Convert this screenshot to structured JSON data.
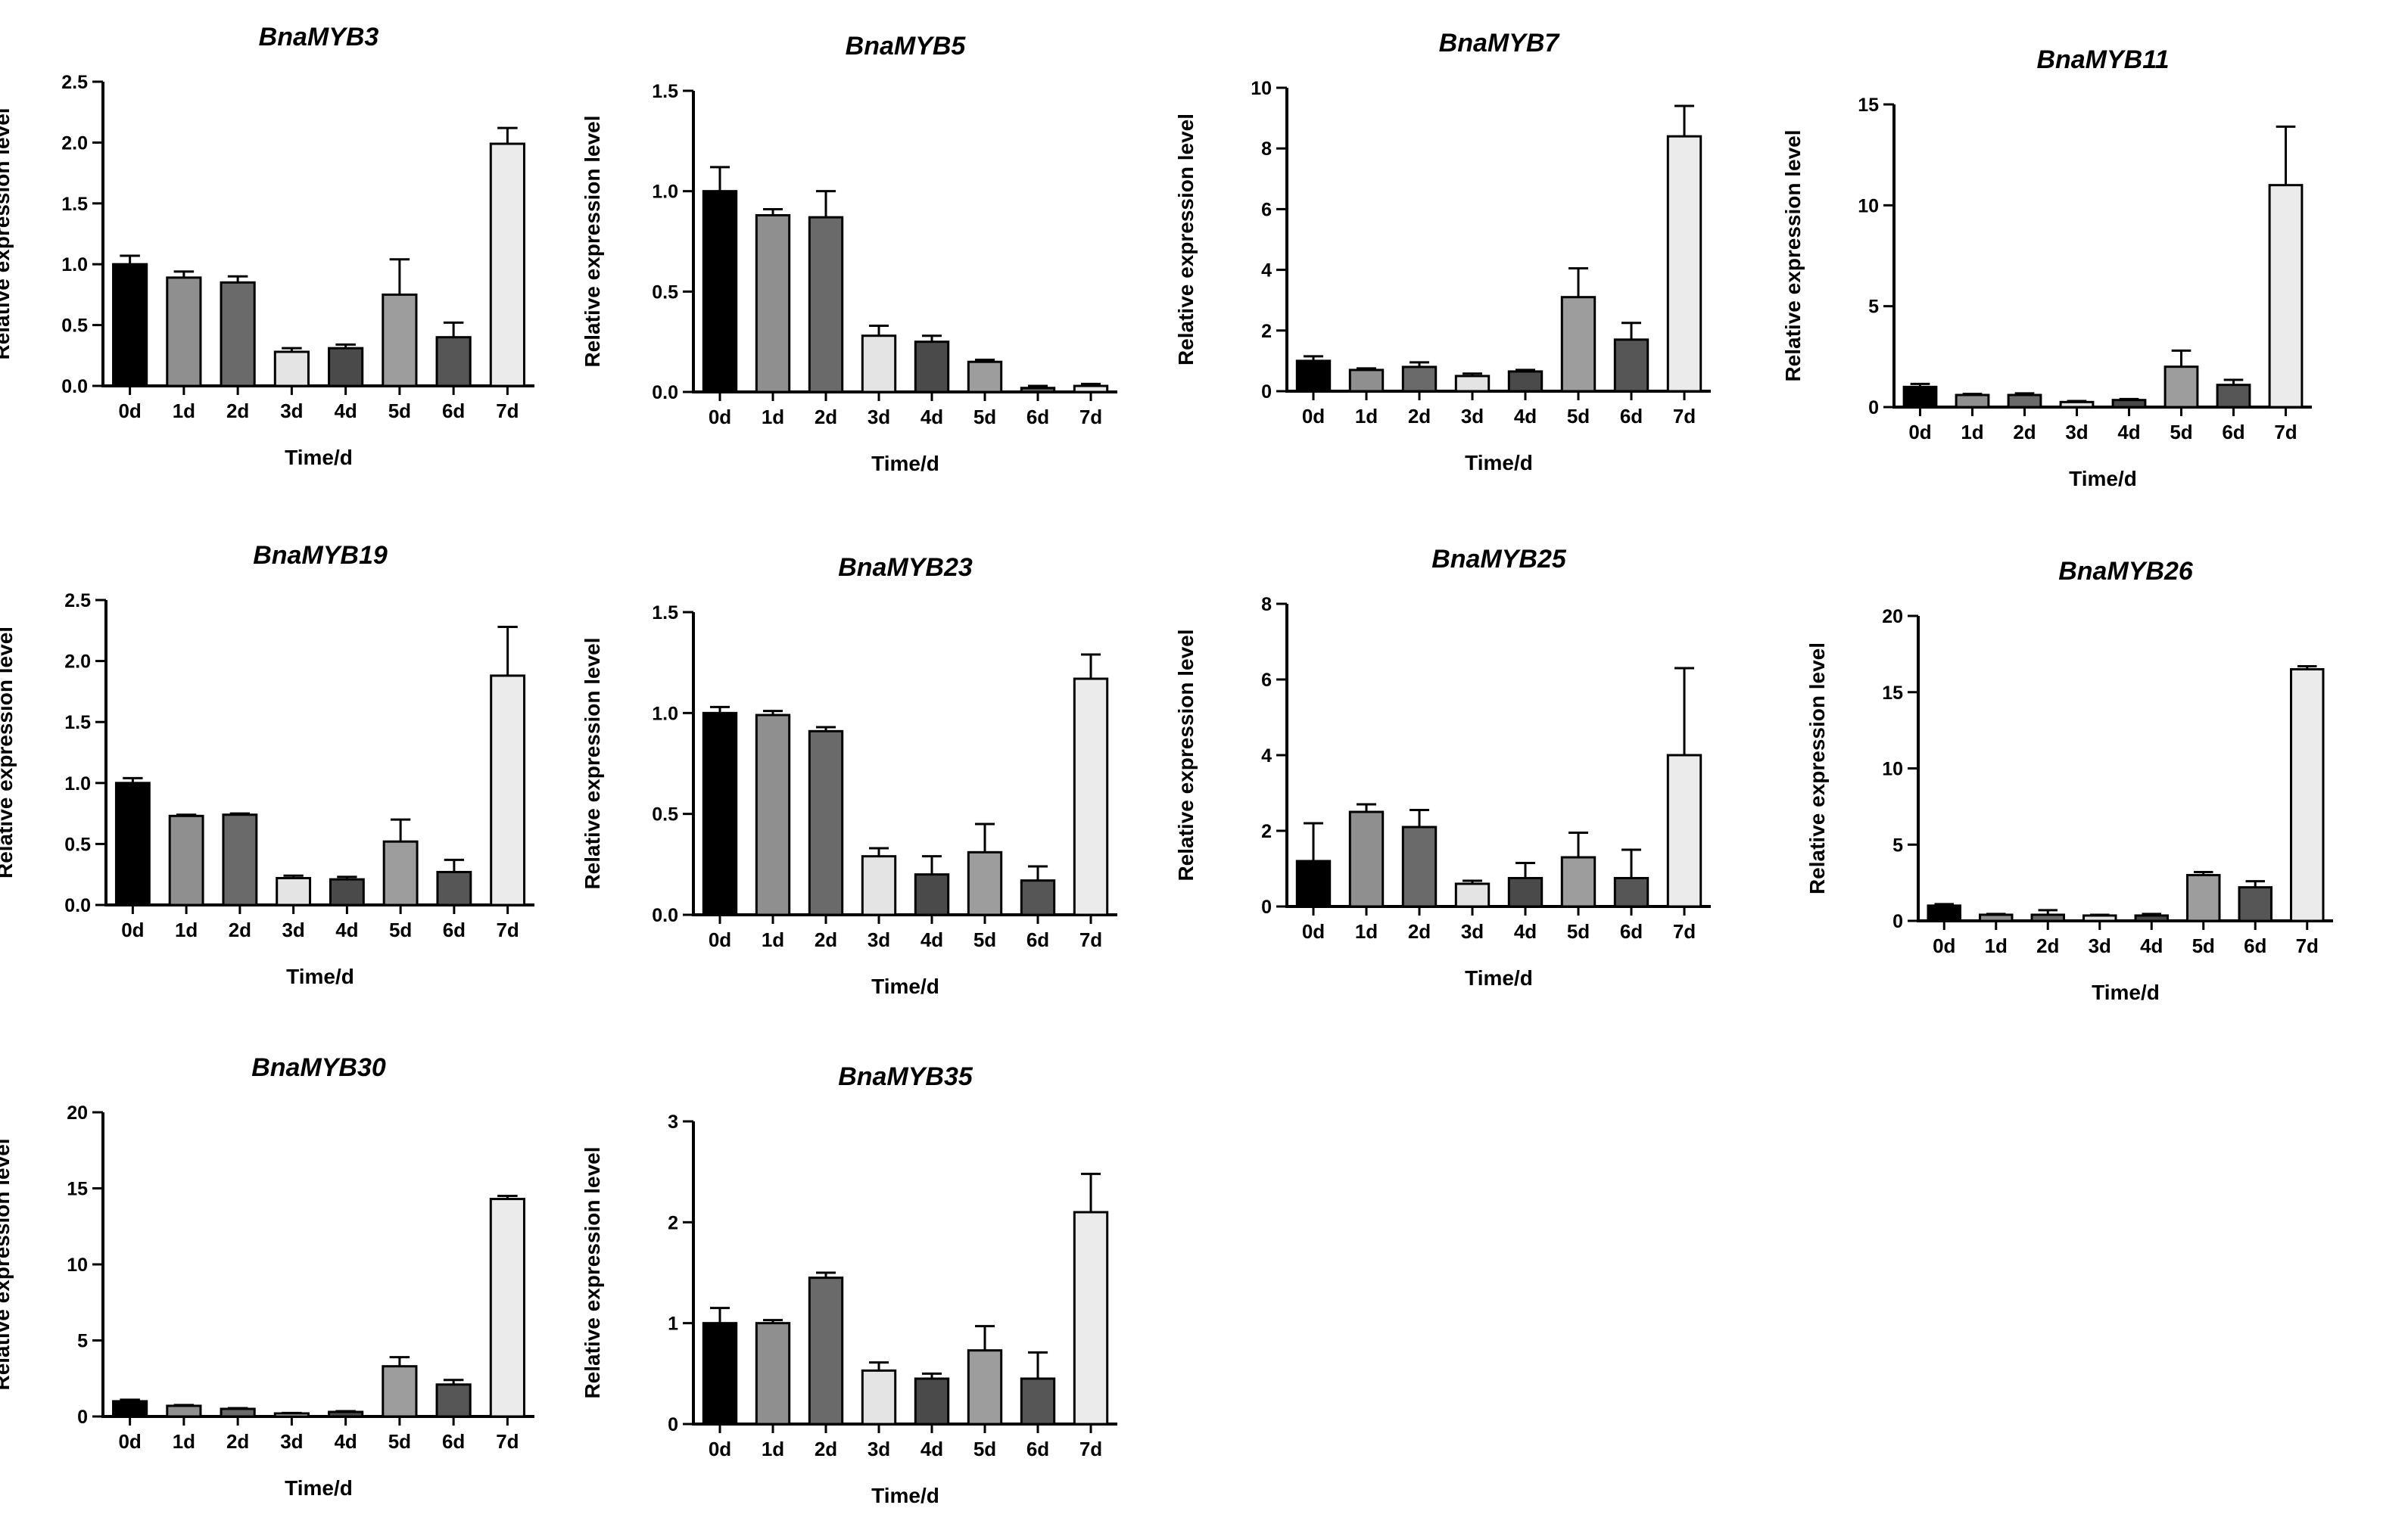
{
  "chart_data": [
    {
      "type": "bar",
      "title": "BnaMYB3",
      "xlabel": "Time/d",
      "ylabel": "Relative expression level",
      "categories": [
        "0d",
        "1d",
        "2d",
        "3d",
        "4d",
        "5d",
        "6d",
        "7d"
      ],
      "values": [
        1.0,
        0.89,
        0.85,
        0.28,
        0.31,
        0.75,
        0.4,
        1.99
      ],
      "errors": [
        0.07,
        0.05,
        0.05,
        0.03,
        0.03,
        0.29,
        0.12,
        0.13
      ],
      "ylim": [
        0,
        2.5
      ],
      "yticks": [
        "0.0",
        "0.5",
        "1.0",
        "1.5",
        "2.0",
        "2.5"
      ]
    },
    {
      "type": "bar",
      "title": "BnaMYB5",
      "xlabel": "Time/d",
      "ylabel": "Relative expression level",
      "categories": [
        "0d",
        "1d",
        "2d",
        "3d",
        "4d",
        "5d",
        "6d",
        "7d"
      ],
      "values": [
        1.0,
        0.88,
        0.87,
        0.28,
        0.25,
        0.15,
        0.02,
        0.03
      ],
      "errors": [
        0.12,
        0.03,
        0.13,
        0.05,
        0.03,
        0.01,
        0.01,
        0.01
      ],
      "ylim": [
        0,
        1.5
      ],
      "yticks": [
        "0.0",
        "0.5",
        "1.0",
        "1.5"
      ]
    },
    {
      "type": "bar",
      "title": "BnaMYB7",
      "xlabel": "Time/d",
      "ylabel": "Relative expression level",
      "categories": [
        "0d",
        "1d",
        "2d",
        "3d",
        "4d",
        "5d",
        "6d",
        "7d"
      ],
      "values": [
        1.0,
        0.7,
        0.8,
        0.5,
        0.65,
        3.1,
        1.7,
        8.4
      ],
      "errors": [
        0.15,
        0.05,
        0.15,
        0.08,
        0.05,
        0.95,
        0.55,
        1.0
      ],
      "ylim": [
        0,
        10
      ],
      "yticks": [
        "0",
        "2",
        "4",
        "6",
        "8",
        "10"
      ]
    },
    {
      "type": "bar",
      "title": "BnaMYB11",
      "xlabel": "Time/d",
      "ylabel": "Relative expression level",
      "categories": [
        "0d",
        "1d",
        "2d",
        "3d",
        "4d",
        "5d",
        "6d",
        "7d"
      ],
      "values": [
        1.0,
        0.6,
        0.6,
        0.25,
        0.35,
        2.0,
        1.1,
        11.0
      ],
      "errors": [
        0.15,
        0.05,
        0.08,
        0.05,
        0.05,
        0.8,
        0.25,
        2.9
      ],
      "ylim": [
        0,
        15
      ],
      "yticks": [
        "0",
        "5",
        "10",
        "15"
      ]
    },
    {
      "type": "bar",
      "title": "BnaMYB19",
      "xlabel": "Time/d",
      "ylabel": "Relative expression level",
      "categories": [
        "0d",
        "1d",
        "2d",
        "3d",
        "4d",
        "5d",
        "6d",
        "7d"
      ],
      "values": [
        1.0,
        0.73,
        0.74,
        0.22,
        0.21,
        0.52,
        0.27,
        1.88
      ],
      "errors": [
        0.04,
        0.01,
        0.01,
        0.02,
        0.02,
        0.18,
        0.1,
        0.4
      ],
      "ylim": [
        0,
        2.5
      ],
      "yticks": [
        "0.0",
        "0.5",
        "1.0",
        "1.5",
        "2.0",
        "2.5"
      ]
    },
    {
      "type": "bar",
      "title": "BnaMYB23",
      "xlabel": "Time/d",
      "ylabel": "Relative expression level",
      "categories": [
        "0d",
        "1d",
        "2d",
        "3d",
        "4d",
        "5d",
        "6d",
        "7d"
      ],
      "values": [
        1.0,
        0.99,
        0.91,
        0.29,
        0.2,
        0.31,
        0.17,
        1.17
      ],
      "errors": [
        0.03,
        0.02,
        0.02,
        0.04,
        0.09,
        0.14,
        0.07,
        0.12
      ],
      "ylim": [
        0,
        1.5
      ],
      "yticks": [
        "0.0",
        "0.5",
        "1.0",
        "1.5"
      ]
    },
    {
      "type": "bar",
      "title": "BnaMYB25",
      "xlabel": "Time/d",
      "ylabel": "Relative expression level",
      "categories": [
        "0d",
        "1d",
        "2d",
        "3d",
        "4d",
        "5d",
        "6d",
        "7d"
      ],
      "values": [
        1.2,
        2.5,
        2.1,
        0.6,
        0.75,
        1.3,
        0.75,
        4.0
      ],
      "errors": [
        1.0,
        0.2,
        0.45,
        0.08,
        0.4,
        0.65,
        0.75,
        2.3
      ],
      "ylim": [
        0,
        8
      ],
      "yticks": [
        "0",
        "2",
        "4",
        "6",
        "8"
      ]
    },
    {
      "type": "bar",
      "title": "BnaMYB26",
      "xlabel": "Time/d",
      "ylabel": "Relative expression level",
      "categories": [
        "0d",
        "1d",
        "2d",
        "3d",
        "4d",
        "5d",
        "6d",
        "7d"
      ],
      "values": [
        1.0,
        0.4,
        0.4,
        0.35,
        0.35,
        3.0,
        2.2,
        16.5
      ],
      "errors": [
        0.1,
        0.05,
        0.3,
        0.05,
        0.1,
        0.2,
        0.4,
        0.2
      ],
      "ylim": [
        0,
        20
      ],
      "yticks": [
        "0",
        "5",
        "10",
        "15",
        "20"
      ]
    },
    {
      "type": "bar",
      "title": "BnaMYB30",
      "xlabel": "Time/d",
      "ylabel": "Relative expression level",
      "categories": [
        "0d",
        "1d",
        "2d",
        "3d",
        "4d",
        "5d",
        "6d",
        "7d"
      ],
      "values": [
        1.0,
        0.7,
        0.5,
        0.2,
        0.3,
        3.3,
        2.1,
        14.3
      ],
      "errors": [
        0.1,
        0.05,
        0.05,
        0.03,
        0.05,
        0.6,
        0.3,
        0.2
      ],
      "ylim": [
        0,
        20
      ],
      "yticks": [
        "0",
        "5",
        "10",
        "15",
        "20"
      ]
    },
    {
      "type": "bar",
      "title": "BnaMYB35",
      "xlabel": "Time/d",
      "ylabel": "Relative expression level",
      "categories": [
        "0d",
        "1d",
        "2d",
        "3d",
        "4d",
        "5d",
        "6d",
        "7d"
      ],
      "values": [
        1.0,
        1.0,
        1.45,
        0.53,
        0.45,
        0.73,
        0.45,
        2.1
      ],
      "errors": [
        0.15,
        0.03,
        0.05,
        0.08,
        0.05,
        0.24,
        0.26,
        0.38
      ],
      "ylim": [
        0,
        3
      ],
      "yticks": [
        "0",
        "1",
        "2",
        "3"
      ]
    }
  ],
  "colors": {
    "bars": [
      "#000000",
      "#8f8f8f",
      "#6a6a6a",
      "#e4e4e4",
      "#4a4a4a",
      "#9d9d9d",
      "#565656",
      "#ebebeb"
    ],
    "axis": "#000000",
    "background": "#ffffff"
  }
}
